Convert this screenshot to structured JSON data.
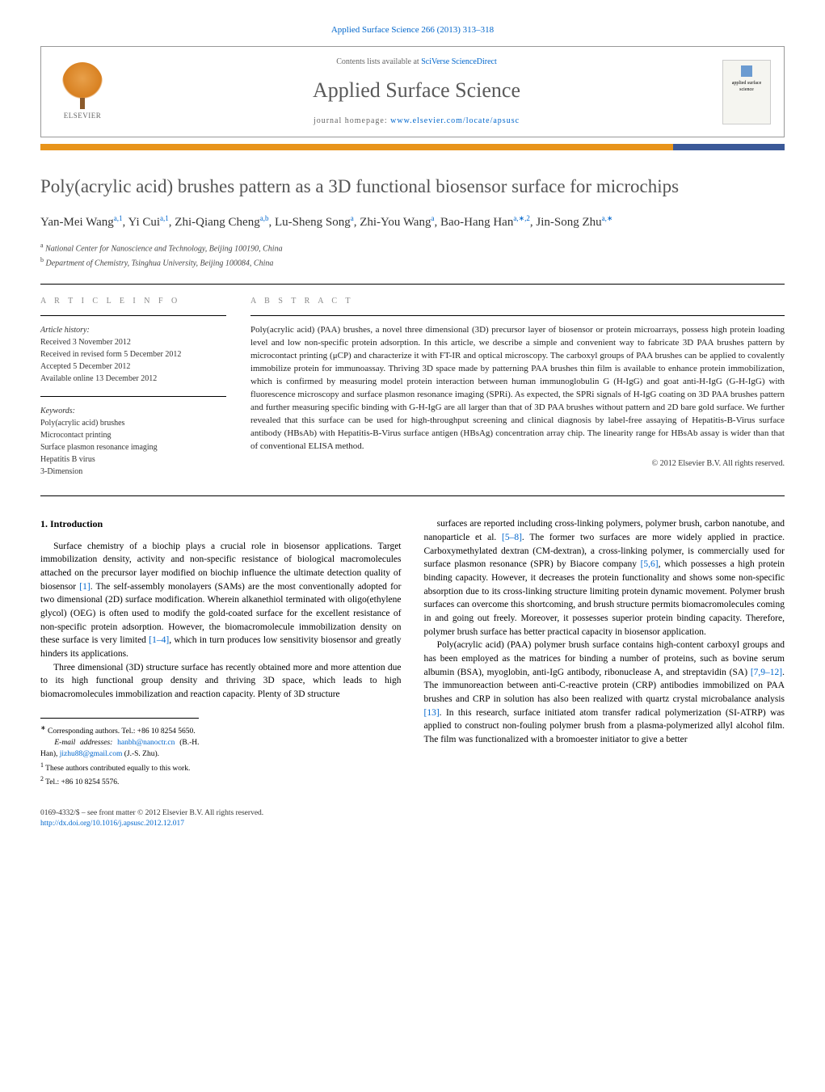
{
  "page": {
    "top_reference": "Applied Surface Science 266 (2013) 313–318",
    "background_color": "#ffffff",
    "text_color": "#000000"
  },
  "header": {
    "publisher_name": "ELSEVIER",
    "contents_prefix": "Contents lists available at ",
    "contents_link": "SciVerse ScienceDirect",
    "journal_name": "Applied Surface Science",
    "homepage_prefix": "journal homepage: ",
    "homepage_link": "www.elsevier.com/locate/apsusc",
    "cover_text": "applied surface science"
  },
  "colors": {
    "bar_primary": "#e8941a",
    "bar_secondary": "#3b5998",
    "link": "#0066cc",
    "title_gray": "#555555"
  },
  "article": {
    "title": "Poly(acrylic acid) brushes pattern as a 3D functional biosensor surface for microchips",
    "authors_html": "Yan-Mei Wang<sup>a,1</sup>, Yi Cui<sup>a,1</sup>, Zhi-Qiang Cheng<sup>a,b</sup>, Lu-Sheng Song<sup>a</sup>, Zhi-You Wang<sup>a</sup>, Bao-Hang Han<sup>a,∗,2</sup>, Jin-Song Zhu<sup>a,∗</sup>",
    "affiliations": {
      "a": "National Center for Nanoscience and Technology, Beijing 100190, China",
      "b": "Department of Chemistry, Tsinghua University, Beijing 100084, China"
    }
  },
  "info": {
    "heading_info": "a r t i c l e    i n f o",
    "heading_abstract": "a b s t r a c t",
    "history_label": "Article history:",
    "history": [
      "Received 3 November 2012",
      "Received in revised form 5 December 2012",
      "Accepted 5 December 2012",
      "Available online 13 December 2012"
    ],
    "keywords_label": "Keywords:",
    "keywords": [
      "Poly(acrylic acid) brushes",
      "Microcontact printing",
      "Surface plasmon resonance imaging",
      "Hepatitis B virus",
      "3-Dimension"
    ]
  },
  "abstract": {
    "text": "Poly(acrylic acid) (PAA) brushes, a novel three dimensional (3D) precursor layer of biosensor or protein microarrays, possess high protein loading level and low non-specific protein adsorption. In this article, we describe a simple and convenient way to fabricate 3D PAA brushes pattern by microcontact printing (μCP) and characterize it with FT-IR and optical microscopy. The carboxyl groups of PAA brushes can be applied to covalently immobilize protein for immunoassay. Thriving 3D space made by patterning PAA brushes thin film is available to enhance protein immobilization, which is confirmed by measuring model protein interaction between human immunoglobulin G (H-IgG) and goat anti-H-IgG (G-H-IgG) with fluorescence microscopy and surface plasmon resonance imaging (SPRi). As expected, the SPRi signals of H-IgG coating on 3D PAA brushes pattern and further measuring specific binding with G-H-IgG are all larger than that of 3D PAA brushes without pattern and 2D bare gold surface. We further revealed that this surface can be used for high-throughput screening and clinical diagnosis by label-free assaying of Hepatitis-B-Virus surface antibody (HBsAb) with Hepatitis-B-Virus surface antigen (HBsAg) concentration array chip. The linearity range for HBsAb assay is wider than that of conventional ELISA method.",
    "copyright": "© 2012 Elsevier B.V. All rights reserved."
  },
  "body": {
    "section_heading": "1.  Introduction",
    "p1": "Surface chemistry of a biochip plays a crucial role in biosensor applications. Target immobilization density, activity and non-specific resistance of biological macromolecules attached on the precursor layer modified on biochip influence the ultimate detection quality of biosensor [1]. The self-assembly monolayers (SAMs) are the most conventionally adopted for two dimensional (2D) surface modification. Wherein alkanethiol terminated with oligo(ethylene glycol) (OEG) is often used to modify the gold-coated surface for the excellent resistance of non-specific protein adsorption. However, the biomacromolecule immobilization density on these surface is very limited [1–4], which in turn produces low sensitivity biosensor and greatly hinders its applications.",
    "p2": "Three dimensional (3D) structure surface has recently obtained more and more attention due to its high functional group density and thriving 3D space, which leads to high biomacromolecules immobilization and reaction capacity. Plenty of 3D structure",
    "p3": "surfaces are reported including cross-linking polymers, polymer brush, carbon nanotube, and nanoparticle et al. [5–8]. The former two surfaces are more widely applied in practice. Carboxymethylated dextran (CM-dextran), a cross-linking polymer, is commercially used for surface plasmon resonance (SPR) by Biacore company [5,6], which possesses a high protein binding capacity. However, it decreases the protein functionality and shows some non-specific absorption due to its cross-linking structure limiting protein dynamic movement. Polymer brush surfaces can overcome this shortcoming, and brush structure permits biomacromolecules coming in and going out freely. Moreover, it possesses superior protein binding capacity. Therefore, polymer brush surface has better practical capacity in biosensor application.",
    "p4": "Poly(acrylic acid) (PAA) polymer brush surface contains high-content carboxyl groups and has been employed as the matrices for binding a number of proteins, such as bovine serum albumin (BSA), myoglobin, anti-IgG antibody, ribonuclease A, and streptavidin (SA) [7,9–12]. The immunoreaction between anti-C-reactive protein (CRP) antibodies immobilized on PAA brushes and CRP in solution has also been realized with quartz crystal microbalance analysis [13]. In this research, surface initiated atom transfer radical polymerization (SI-ATRP) was applied to construct non-fouling polymer brush from a plasma-polymerized allyl alcohol film. The film was functionalized with a bromoester initiator to give a better"
  },
  "footnotes": {
    "corr": "Corresponding authors. Tel.: +86 10 8254 5650.",
    "email_label": "E-mail addresses:",
    "email1": "hanbh@nanoctr.cn",
    "email1_who": "(B.-H. Han),",
    "email2": "jizhu88@gmail.com",
    "email2_who": "(J.-S. Zhu).",
    "n1": "These authors contributed equally to this work.",
    "n2": "Tel.: +86 10 8254 5576."
  },
  "footer": {
    "issn_line": "0169-4332/$ – see front matter © 2012 Elsevier B.V. All rights reserved.",
    "doi": "http://dx.doi.org/10.1016/j.apsusc.2012.12.017"
  }
}
